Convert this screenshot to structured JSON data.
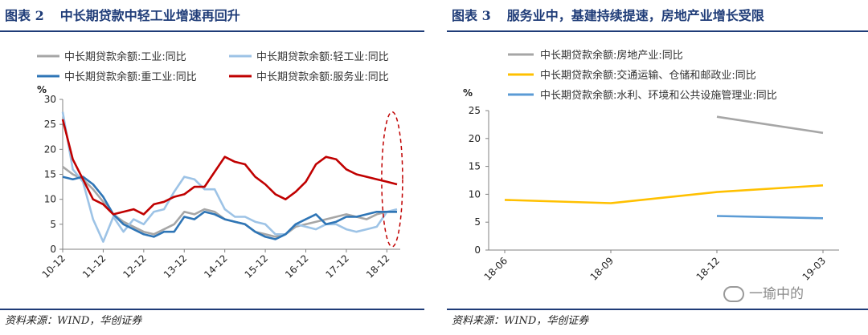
{
  "left": {
    "fig_num": "图表 2",
    "title": "中长期贷款中轻工业增速再回升",
    "source": "资料来源：WIND，华创证券"
  },
  "right": {
    "fig_num": "图表 3",
    "title": "服务业中，基建持续提速，房地产业增长受限",
    "source": "资料来源：WIND，华创证券"
  },
  "watermark": "一瑜中的",
  "chart_data": [
    {
      "type": "line",
      "ylabel": "%",
      "ylim": [
        0,
        30
      ],
      "yticks": [
        0,
        5,
        10,
        15,
        20,
        25,
        30
      ],
      "x_ticks": [
        "10-12",
        "11-12",
        "12-12",
        "13-12",
        "14-12",
        "15-12",
        "16-12",
        "17-12",
        "18-12"
      ],
      "x_range": [
        2010.92,
        2019.25
      ],
      "legend_placement": "top",
      "annotation": "dashed ellipse highlighting the latest values",
      "series": [
        {
          "name": "中长期贷款余额:工业:同比",
          "color": "#a6a6a6",
          "x": [
            2010.92,
            2011.17,
            2011.42,
            2011.67,
            2011.92,
            2012.17,
            2012.42,
            2012.67,
            2012.92,
            2013.17,
            2013.42,
            2013.67,
            2013.92,
            2014.17,
            2014.42,
            2014.67,
            2014.92,
            2015.17,
            2015.42,
            2015.67,
            2015.92,
            2016.17,
            2016.42,
            2016.67,
            2016.92,
            2017.17,
            2017.42,
            2017.67,
            2017.92,
            2018.17,
            2018.42,
            2018.67,
            2018.92,
            2019.17
          ],
          "values": [
            16.5,
            15.0,
            14.0,
            12.0,
            9.5,
            7.0,
            5.5,
            4.5,
            3.5,
            3.0,
            4.0,
            5.0,
            7.5,
            7.0,
            8.0,
            7.5,
            6.0,
            5.5,
            5.0,
            3.5,
            3.0,
            2.5,
            3.0,
            4.5,
            5.0,
            5.5,
            6.0,
            6.5,
            7.0,
            6.5,
            6.0,
            7.0,
            7.5,
            7.5
          ]
        },
        {
          "name": "中长期贷款余额:轻工业:同比",
          "color": "#9dc3e6",
          "x": [
            2010.92,
            2011.17,
            2011.42,
            2011.67,
            2011.92,
            2012.17,
            2012.42,
            2012.67,
            2012.92,
            2013.17,
            2013.42,
            2013.67,
            2013.92,
            2014.17,
            2014.42,
            2014.67,
            2014.92,
            2015.17,
            2015.42,
            2015.67,
            2015.92,
            2016.17,
            2016.42,
            2016.67,
            2016.92,
            2017.17,
            2017.42,
            2017.67,
            2017.92,
            2018.17,
            2018.42,
            2018.67,
            2018.92,
            2019.17
          ],
          "values": [
            27.5,
            16.0,
            13.5,
            6.0,
            1.5,
            6.5,
            3.5,
            6.0,
            5.0,
            7.5,
            8.0,
            11.5,
            14.5,
            14.0,
            12.0,
            12.0,
            8.0,
            6.5,
            6.5,
            5.5,
            5.0,
            3.0,
            3.0,
            5.0,
            4.5,
            4.0,
            5.0,
            5.0,
            4.0,
            3.5,
            4.0,
            4.5,
            7.5,
            8.0
          ]
        },
        {
          "name": "中长期贷款余额:重工业:同比",
          "color": "#2e75b6",
          "x": [
            2010.92,
            2011.17,
            2011.42,
            2011.67,
            2011.92,
            2012.17,
            2012.42,
            2012.67,
            2012.92,
            2013.17,
            2013.42,
            2013.67,
            2013.92,
            2014.17,
            2014.42,
            2014.67,
            2014.92,
            2015.17,
            2015.42,
            2015.67,
            2015.92,
            2016.17,
            2016.42,
            2016.67,
            2016.92,
            2017.17,
            2017.42,
            2017.67,
            2017.92,
            2018.17,
            2018.42,
            2018.67,
            2018.92,
            2019.17
          ],
          "values": [
            14.5,
            14.0,
            14.5,
            13.0,
            10.5,
            7.0,
            5.0,
            4.0,
            3.0,
            2.5,
            3.5,
            3.5,
            6.5,
            6.0,
            7.5,
            7.0,
            6.0,
            5.5,
            5.0,
            3.5,
            2.5,
            2.0,
            3.0,
            5.0,
            6.0,
            7.0,
            5.0,
            5.5,
            6.5,
            6.5,
            7.0,
            7.5,
            7.5,
            7.5
          ]
        },
        {
          "name": "中长期贷款余额:服务业:同比",
          "color": "#c00000",
          "x": [
            2010.92,
            2011.17,
            2011.42,
            2011.67,
            2011.92,
            2012.17,
            2012.42,
            2012.67,
            2012.92,
            2013.17,
            2013.42,
            2013.67,
            2013.92,
            2014.17,
            2014.42,
            2014.67,
            2014.92,
            2015.17,
            2015.42,
            2015.67,
            2015.92,
            2016.17,
            2016.42,
            2016.67,
            2016.92,
            2017.17,
            2017.42,
            2017.67,
            2017.92,
            2018.17,
            2018.42,
            2018.67,
            2018.92,
            2019.17
          ],
          "values": [
            26.0,
            18.0,
            14.0,
            10.0,
            9.0,
            7.0,
            7.5,
            8.0,
            7.0,
            9.0,
            9.5,
            10.5,
            11.0,
            12.5,
            12.5,
            15.5,
            18.5,
            17.5,
            17.0,
            14.5,
            13.0,
            11.0,
            10.0,
            11.5,
            13.5,
            17.0,
            18.5,
            18.0,
            16.0,
            15.0,
            14.5,
            14.0,
            13.5,
            13.0
          ]
        }
      ]
    },
    {
      "type": "line",
      "ylabel": "%",
      "ylim": [
        0,
        25
      ],
      "yticks": [
        0,
        5,
        10,
        15,
        20,
        25
      ],
      "categories": [
        "18-06",
        "18-09",
        "18-12",
        "19-03"
      ],
      "legend_placement": "top",
      "series": [
        {
          "name": "中长期贷款余额:房地产业:同比",
          "color": "#a6a6a6",
          "values": [
            null,
            null,
            23.9,
            21.0
          ]
        },
        {
          "name": "中长期贷款余额:交通运输、仓储和邮政业:同比",
          "color": "#ffc000",
          "values": [
            9.0,
            8.4,
            10.4,
            11.6
          ]
        },
        {
          "name": "中长期贷款余额:水利、环境和公共设施管理业:同比",
          "color": "#5b9bd5",
          "values": [
            null,
            null,
            6.1,
            5.7
          ]
        }
      ]
    }
  ]
}
